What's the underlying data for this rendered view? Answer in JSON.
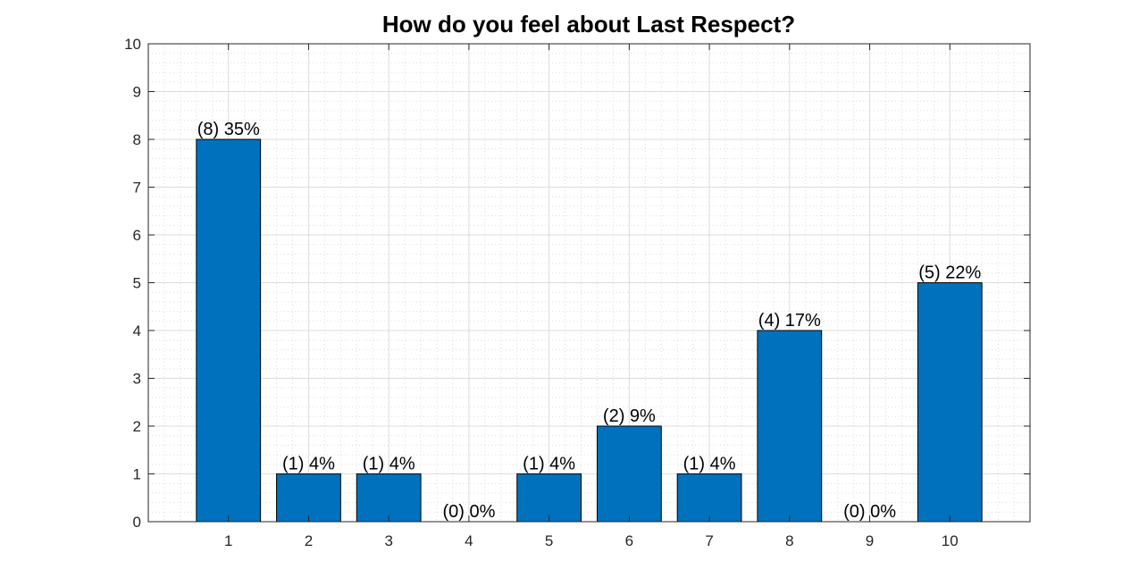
{
  "chart_data": {
    "type": "bar",
    "title": "How do you feel about Last Respect?",
    "xlabel": "",
    "ylabel": "",
    "categories": [
      "1",
      "2",
      "3",
      "4",
      "5",
      "6",
      "7",
      "8",
      "9",
      "10"
    ],
    "values": [
      8,
      1,
      1,
      0,
      1,
      2,
      1,
      4,
      0,
      5
    ],
    "data_labels": [
      "(8) 35%",
      "(1) 4%",
      "(1) 4%",
      "(0) 0%",
      "(1) 4%",
      "(2) 9%",
      "(1) 4%",
      "(4) 17%",
      "(0) 0%",
      "(5) 22%"
    ],
    "ylim": [
      0,
      10
    ],
    "xlim": [
      0,
      11
    ],
    "yticks": [
      "0",
      "1",
      "2",
      "3",
      "4",
      "5",
      "6",
      "7",
      "8",
      "9",
      "10"
    ],
    "grid": true,
    "minor_grid": true,
    "colors": {
      "bar": "#0072BD",
      "bar_edge": "#000000",
      "grid": "#dcdcdc",
      "axis": "#262626"
    }
  }
}
